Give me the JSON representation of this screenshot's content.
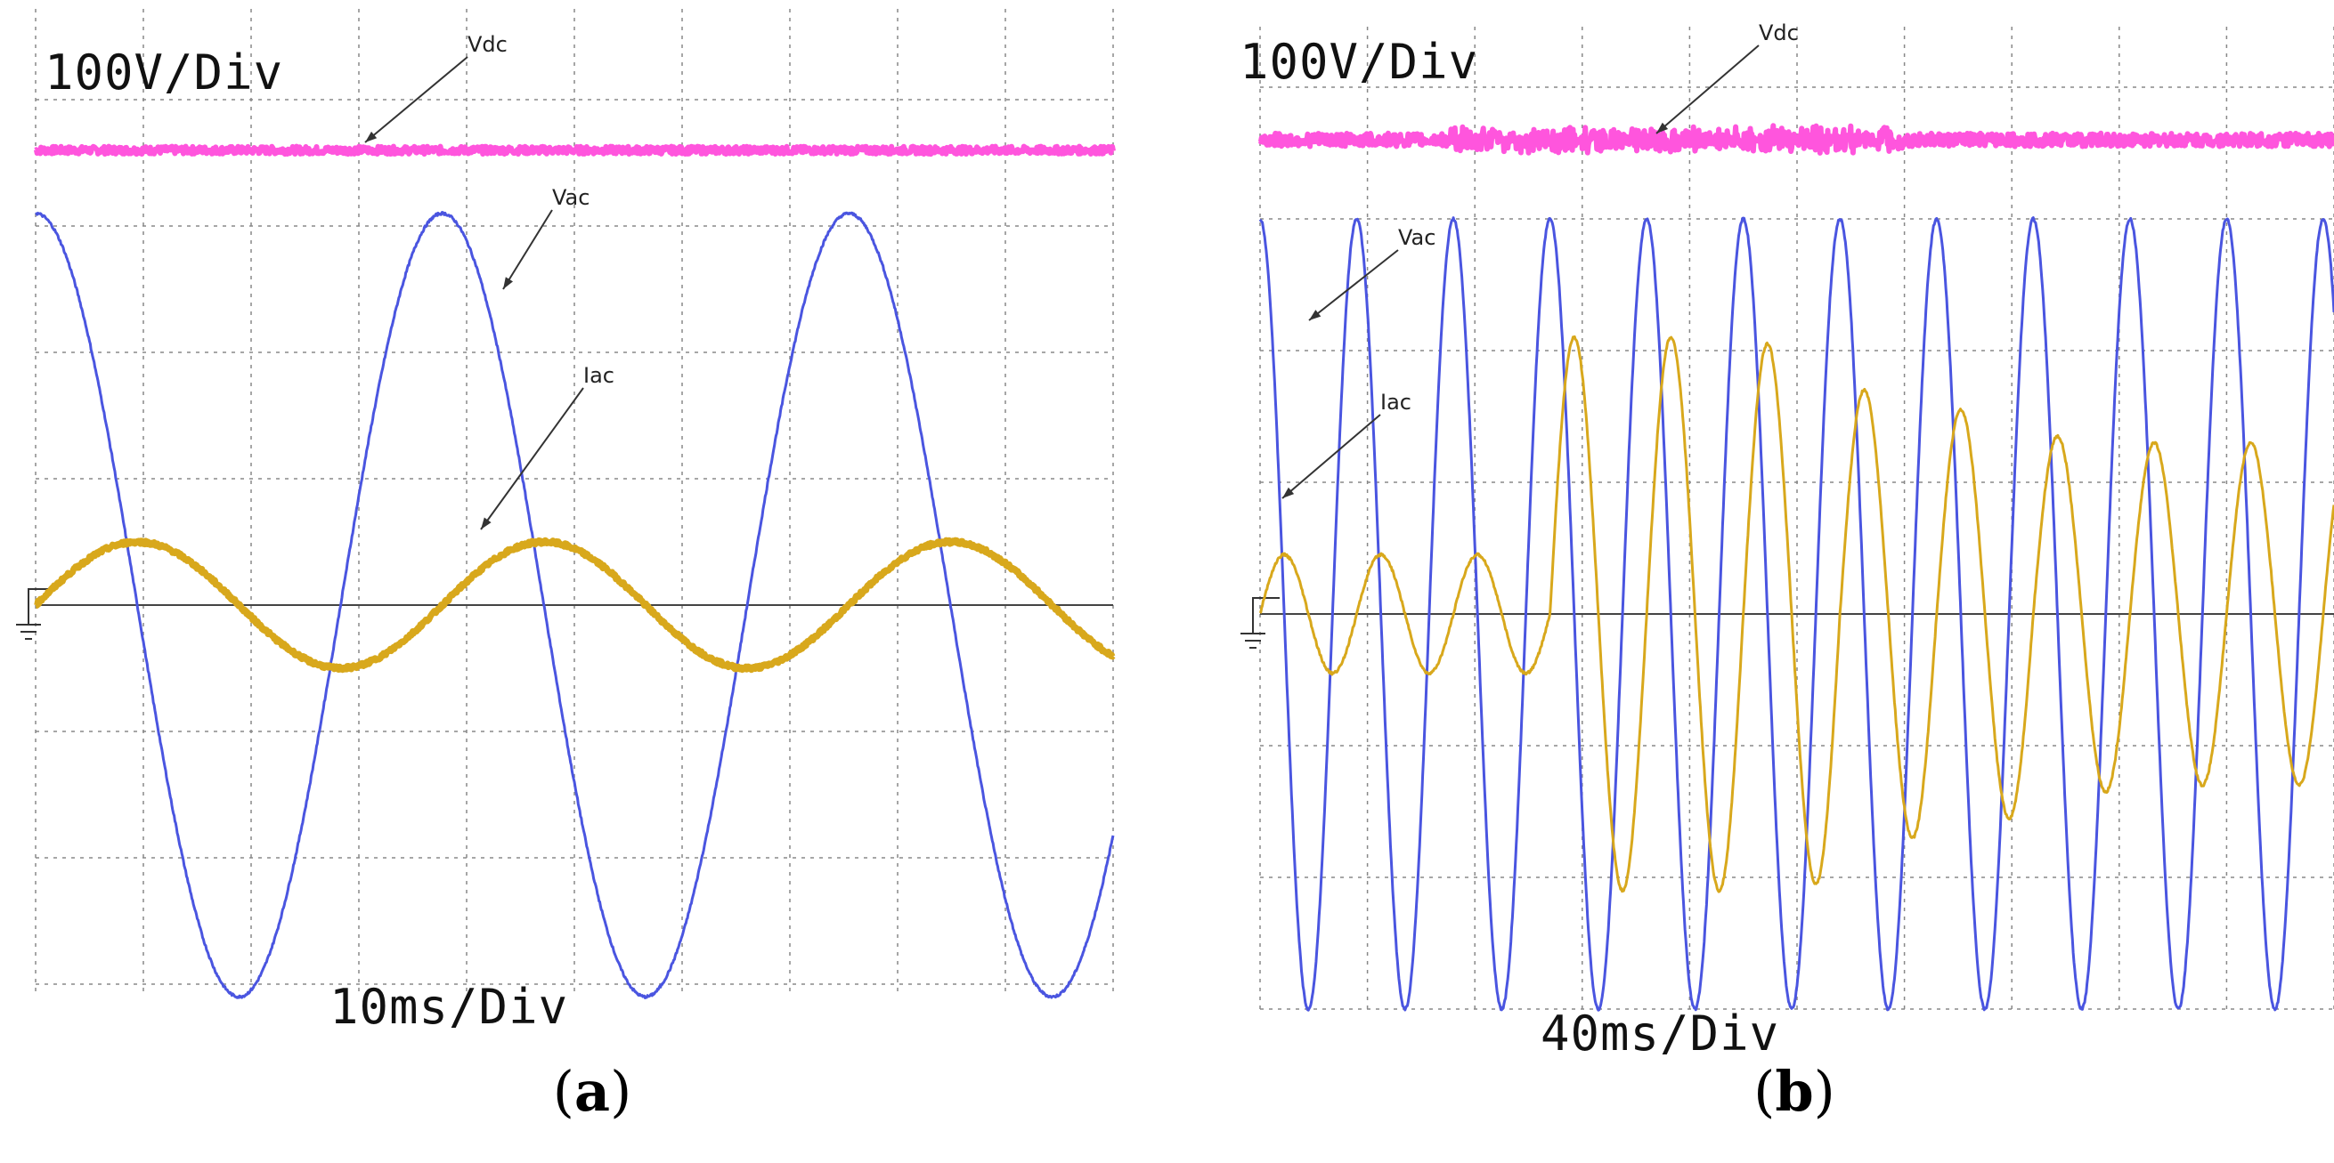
{
  "figure": {
    "caption_a": "a",
    "caption_b": "b"
  },
  "colors": {
    "vdc": "#ff55dd",
    "vac": "#4a55e0",
    "iac": "#d8a81c",
    "grid": "#888888"
  },
  "chart_data": [
    {
      "type": "line",
      "panel": "a",
      "volt_scale_label": "100V/Div",
      "time_scale_label": "10ms/Div",
      "x_unit": "ms",
      "x_range": [
        0,
        106
      ],
      "y_unit": "div",
      "y_range": [
        -3.2,
        3.5
      ],
      "x_divisions": 10,
      "y_divisions": 8,
      "series": [
        {
          "name": "Vdc",
          "label": "Vdc",
          "level": 3.6,
          "period": 20,
          "peak": 0,
          "phase_deg": 0,
          "noise": 0.03
        },
        {
          "name": "Vac",
          "label": "Vac",
          "level": 0,
          "period": 40,
          "peak": 3.1,
          "phase_deg": 90,
          "noise": 0.02
        },
        {
          "name": "Iac",
          "label": "Iac",
          "level": 0,
          "period": 40,
          "peak": 0.5,
          "phase_deg": 0,
          "noise": 0.03
        }
      ],
      "arrows": [
        "Vdc",
        "Vac",
        "Iac"
      ]
    },
    {
      "type": "line",
      "panel": "b",
      "volt_scale_label": "100V/Div",
      "time_scale_label": "40ms/Div",
      "x_unit": "ms",
      "x_range": [
        0,
        400
      ],
      "y_unit": "div",
      "y_range": [
        -3.2,
        3.5
      ],
      "x_divisions": 10,
      "y_divisions": 8,
      "series": [
        {
          "name": "Vdc",
          "label": "Vdc",
          "level": 3.6,
          "peak": 0,
          "noise": 0.05
        },
        {
          "name": "Vac",
          "label": "Vac",
          "level": 0,
          "period": 36,
          "peak": 3.0,
          "phase_deg": 90,
          "noise": 0.02
        },
        {
          "name": "Iac",
          "label": "Iac",
          "level": 0,
          "period": 36,
          "peak_steps": [
            0.45,
            0.45,
            0.45,
            2.1,
            2.1,
            2.05,
            1.7,
            1.55,
            1.35,
            1.3,
            1.3
          ],
          "saturation": 2.1,
          "phase_deg": 0,
          "noise": 0.02
        }
      ],
      "arrows": [
        "Vdc",
        "Vac",
        "Iac"
      ]
    }
  ]
}
